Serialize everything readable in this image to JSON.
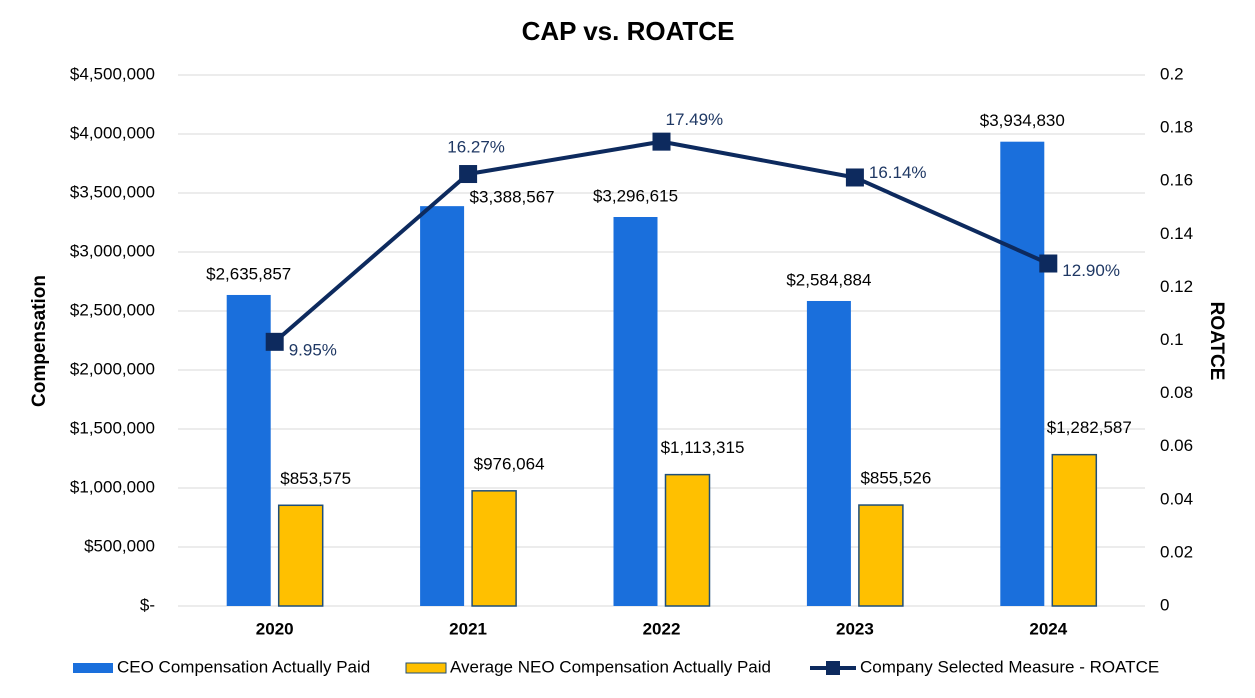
{
  "chart_data": {
    "type": "bar",
    "title": "CAP vs. ROATCE",
    "y_label": "Compensation",
    "y2_label": "ROATCE",
    "categories": [
      "2020",
      "2021",
      "2022",
      "2023",
      "2024"
    ],
    "series": [
      {
        "name": "CEO Compensation Actually Paid",
        "color": "#1a6fdc",
        "values": [
          2635857,
          3388567,
          3296615,
          2584884,
          3934830
        ],
        "value_labels": [
          "$2,635,857",
          "$3,388,567",
          "$3,296,615",
          "$2,584,884",
          "$3,934,830"
        ]
      },
      {
        "name": "Average NEO Compensation Actually Paid",
        "color": "#ffc000",
        "values": [
          853575,
          976064,
          1113315,
          855526,
          1282587
        ],
        "value_labels": [
          "$853,575",
          "$976,064",
          "$1,113,315",
          "$855,526",
          "$1,282,587"
        ]
      },
      {
        "name": "Company Selected Measure - ROATCE",
        "color": "#0d2a5e",
        "type": "line",
        "axis": "y2",
        "values": [
          0.0995,
          0.1627,
          0.1749,
          0.1614,
          0.129
        ],
        "value_labels": [
          "9.95%",
          "16.27%",
          "17.49%",
          "16.14%",
          "12.90%"
        ]
      }
    ],
    "ylim": [
      0,
      4500000
    ],
    "yticks": [
      {
        "value": 0,
        "label": "$-"
      },
      {
        "value": 500000,
        "label": "$500,000"
      },
      {
        "value": 1000000,
        "label": "$1,000,000"
      },
      {
        "value": 1500000,
        "label": "$1,500,000"
      },
      {
        "value": 2000000,
        "label": "$2,000,000"
      },
      {
        "value": 2500000,
        "label": "$2,500,000"
      },
      {
        "value": 3000000,
        "label": "$3,000,000"
      },
      {
        "value": 3500000,
        "label": "$3,500,000"
      },
      {
        "value": 4000000,
        "label": "$4,000,000"
      },
      {
        "value": 4500000,
        "label": "$4,500,000"
      }
    ],
    "y2lim": [
      0,
      0.2
    ],
    "y2ticks": [
      0,
      0.02,
      0.04,
      0.06,
      0.08,
      0.1,
      0.12,
      0.14,
      0.16,
      0.18,
      0.2
    ],
    "grid": true,
    "legend": "bottom"
  }
}
